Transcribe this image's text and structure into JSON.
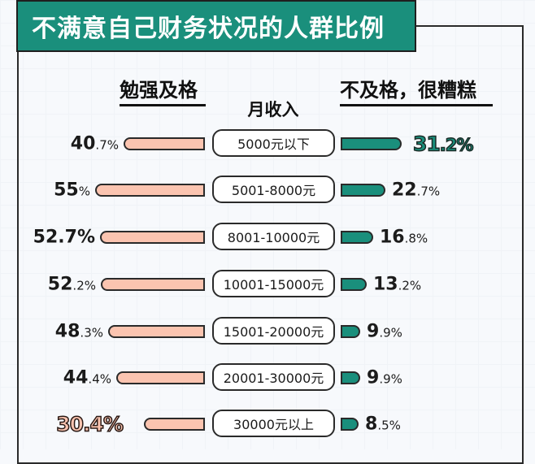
{
  "title": "不满意自己财务状况的人群比例",
  "headers": {
    "left": "勉强及格",
    "middle": "月收入",
    "right": "不及格，很糟糕"
  },
  "colors": {
    "accent_green": "#1a8f7c",
    "accent_pink": "#fbc4b0",
    "outline": "#2a2a2a"
  },
  "rows": [
    {
      "category": "5000元以下",
      "left": {
        "big": "40",
        "small": ".7%"
      },
      "right": {
        "big": "31",
        "small": ".2%"
      }
    },
    {
      "category": "5001-8000元",
      "left": {
        "big": "55",
        "small": "%"
      },
      "right": {
        "big": "22",
        "small": ".7%"
      }
    },
    {
      "category": "8001-10000元",
      "left": {
        "big": "52.7%",
        "small": ""
      },
      "right": {
        "big": "16",
        "small": ".8%"
      }
    },
    {
      "category": "10001-15000元",
      "left": {
        "big": "52",
        "small": ".2%"
      },
      "right": {
        "big": "13",
        "small": ".2%"
      }
    },
    {
      "category": "15001-20000元",
      "left": {
        "big": "48",
        "small": ".3%"
      },
      "right": {
        "big": "9",
        "small": ".9%"
      }
    },
    {
      "category": "20001-30000元",
      "left": {
        "big": "44",
        "small": ".4%"
      },
      "right": {
        "big": "9",
        "small": ".9%"
      }
    },
    {
      "category": "30000元以上",
      "left": {
        "big": "30.4%",
        "small": ""
      },
      "right": {
        "big": "8",
        "small": ".5%"
      }
    }
  ],
  "chart_data": {
    "type": "bar",
    "title": "不满意自己财务状况的人群比例",
    "xlabel": "月收入",
    "ylabel": "",
    "categories": [
      "5000元以下",
      "5001-8000元",
      "8001-10000元",
      "10001-15000元",
      "15001-20000元",
      "20001-30000元",
      "30000元以上"
    ],
    "series": [
      {
        "name": "勉强及格",
        "values": [
          40.7,
          55,
          52.7,
          52.2,
          48.3,
          44.4,
          30.4
        ],
        "color": "#fbc4b0",
        "direction": "left"
      },
      {
        "name": "不及格，很糟糕",
        "values": [
          31.2,
          22.7,
          16.8,
          13.2,
          9.9,
          9.9,
          8.5
        ],
        "color": "#1a8f7c",
        "direction": "right"
      }
    ],
    "highlights": {
      "勉强及格": "30000元以上",
      "不及格，很糟糕": "5000元以下"
    },
    "unit": "%",
    "grid": false,
    "legend_position": "top (column headers)"
  }
}
